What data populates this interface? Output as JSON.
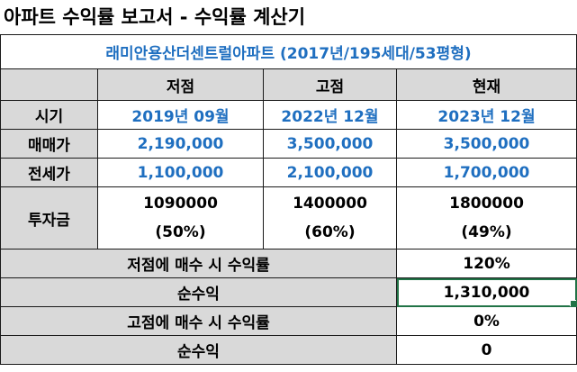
{
  "title": "아파트 수익률 보고서 - 수익률 계산기",
  "apartment": "래미안용산더센트럴아파트 (2017년/195세대/53평형)",
  "columns": [
    "저점",
    "고점",
    "현재"
  ],
  "rows": {
    "period": {
      "label": "시기",
      "values": [
        "2019년 09월",
        "2022년 12월",
        "2023년 12월"
      ]
    },
    "price": {
      "label": "매매가",
      "values": [
        "2,190,000",
        "3,500,000",
        "3,500,000"
      ]
    },
    "jeonse": {
      "label": "전세가",
      "values": [
        "1,100,000",
        "2,100,000",
        "1,700,000"
      ]
    },
    "investment": {
      "label": "투자금",
      "amounts": [
        "1090000",
        "1400000",
        "1800000"
      ],
      "ratios": [
        "(50%)",
        "(60%)",
        "(49%)"
      ]
    }
  },
  "summary": [
    {
      "label": "저점에 매수 시 수익률",
      "value": "120%"
    },
    {
      "label": "순수익",
      "value": "1,310,000"
    },
    {
      "label": "고점에 매수 시 수익률",
      "value": "0%"
    },
    {
      "label": "순수익",
      "value": "0"
    }
  ],
  "colors": {
    "accent_blue": "#1F6FC0",
    "header_gray": "#d9d9d9",
    "selection_green": "#217346"
  }
}
